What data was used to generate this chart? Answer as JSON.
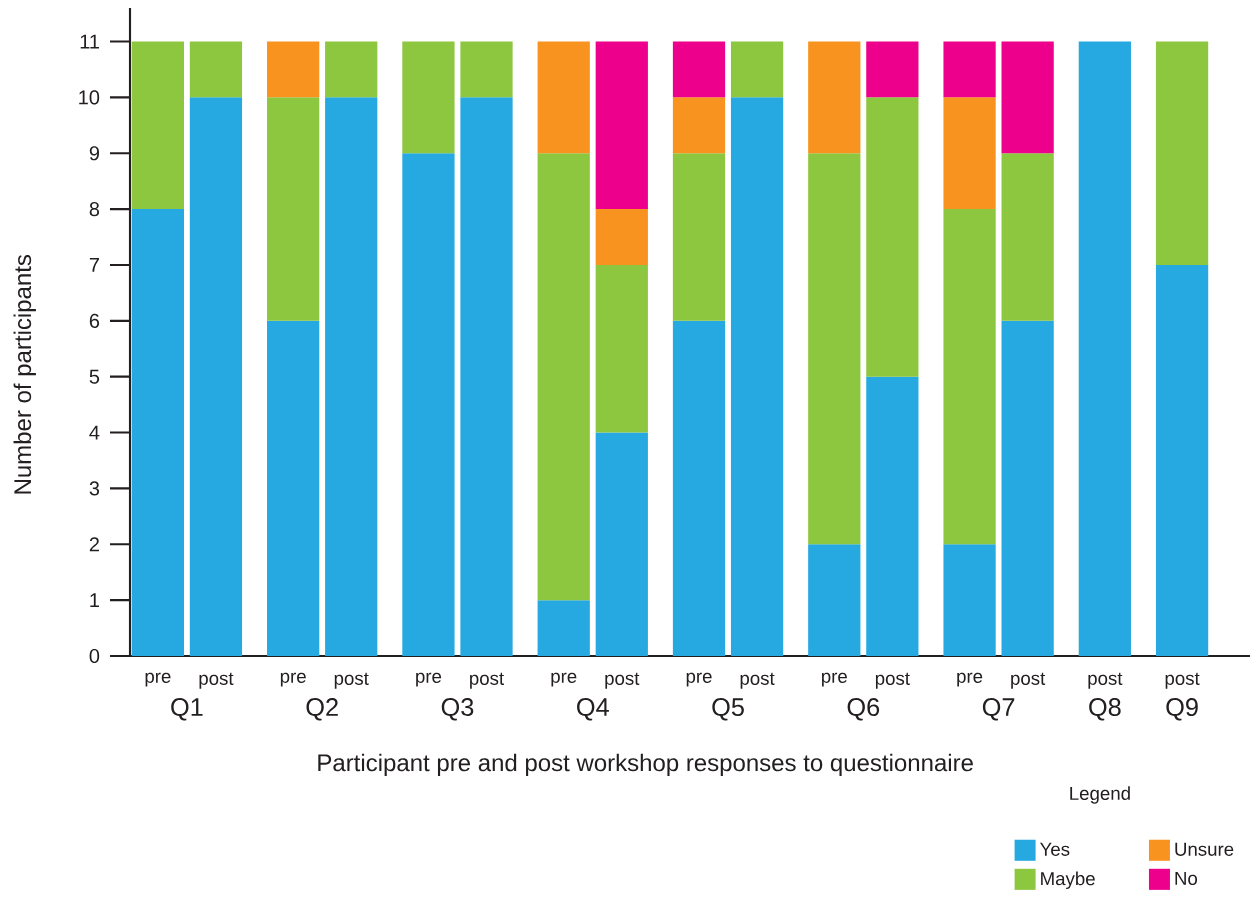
{
  "chart_data": {
    "type": "bar",
    "stacked": true,
    "xlabel": "Participant pre and post workshop responses to questionnaire",
    "ylabel": "Number of participants",
    "legend_title": "Legend",
    "legend": "bottom right",
    "categories": [
      "pre",
      "post",
      "pre",
      "post",
      "pre",
      "post",
      "pre",
      "post",
      "pre",
      "post",
      "pre",
      "post",
      "pre",
      "post",
      "post",
      "post"
    ],
    "annotations": [
      "Q1",
      "Q2",
      "Q3",
      "Q4",
      "Q5",
      "Q6",
      "Q7",
      "Q8",
      "Q9"
    ],
    "ylim": [
      0,
      11.6
    ],
    "yticks": [
      0,
      1,
      2,
      3,
      4,
      5,
      6,
      7,
      8,
      9,
      10,
      11
    ],
    "series": [
      {
        "name": "Yes",
        "color": "#26a9e0",
        "values": [
          8,
          10,
          6,
          10,
          9,
          10,
          1,
          4,
          6,
          10,
          2,
          5,
          2,
          6,
          11,
          7
        ]
      },
      {
        "name": "Maybe",
        "color": "#8dc63f",
        "values": [
          3,
          1,
          4,
          1,
          2,
          1,
          8,
          3,
          3,
          1,
          7,
          5,
          6,
          3,
          0,
          4
        ]
      },
      {
        "name": "Unsure",
        "color": "#f7931e",
        "values": [
          0,
          0,
          1,
          0,
          0,
          0,
          2,
          1,
          1,
          0,
          2,
          0,
          2,
          0,
          0,
          0
        ]
      },
      {
        "name": "No",
        "color": "#ec008c",
        "values": [
          0,
          0,
          0,
          0,
          0,
          0,
          0,
          3,
          1,
          0,
          0,
          1,
          1,
          2,
          0,
          0
        ]
      }
    ]
  }
}
